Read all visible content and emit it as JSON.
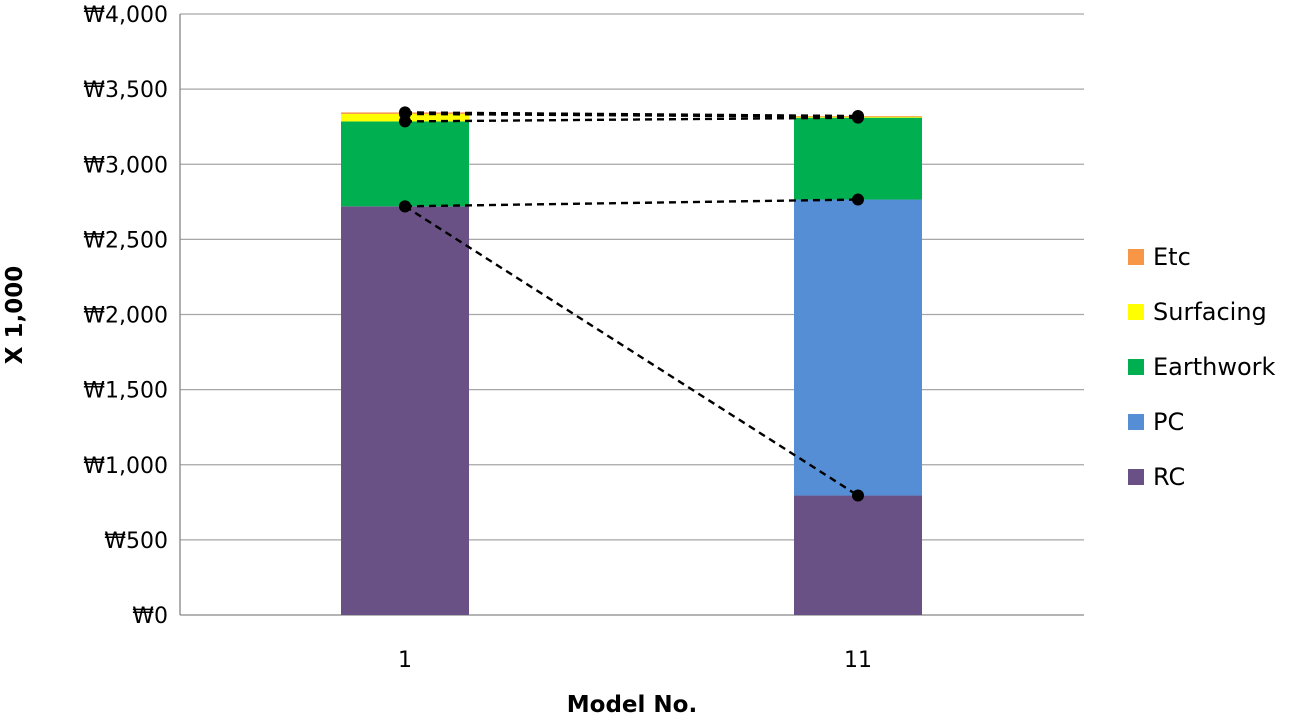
{
  "chart_data": {
    "type": "bar",
    "stacked": true,
    "categories": [
      "1",
      "11"
    ],
    "series": [
      {
        "name": "RC",
        "color": "#6A5185",
        "values": [
          2720,
          795
        ]
      },
      {
        "name": "PC",
        "color": "#558ED5",
        "values": [
          0,
          1970
        ]
      },
      {
        "name": "Earthwork",
        "color": "#00B050",
        "values": [
          565,
          545
        ]
      },
      {
        "name": "Surfacing",
        "color": "#FFFF00",
        "values": [
          50,
          6
        ]
      },
      {
        "name": "Etc",
        "color": "#F79646",
        "values": [
          10,
          5
        ]
      }
    ],
    "xlabel": "Model No.",
    "ylabel": "X 1,000",
    "ylim": [
      0,
      4000
    ],
    "yticks": [
      0,
      500,
      1000,
      1500,
      2000,
      2500,
      3000,
      3500,
      4000
    ],
    "ytick_labels": [
      "₩0",
      "₩500",
      "₩1,000",
      "₩1,500",
      "₩2,000",
      "₩2,500",
      "₩3,000",
      "₩3,500",
      "₩4,000"
    ],
    "grid": true,
    "legend": "right",
    "connector_lines": {
      "style": "dashed",
      "color": "#000000",
      "from_to": [
        [
          2720,
          795
        ],
        [
          2720,
          2765
        ],
        [
          3285,
          3310
        ],
        [
          3335,
          3316
        ],
        [
          3345,
          3321
        ]
      ]
    }
  }
}
